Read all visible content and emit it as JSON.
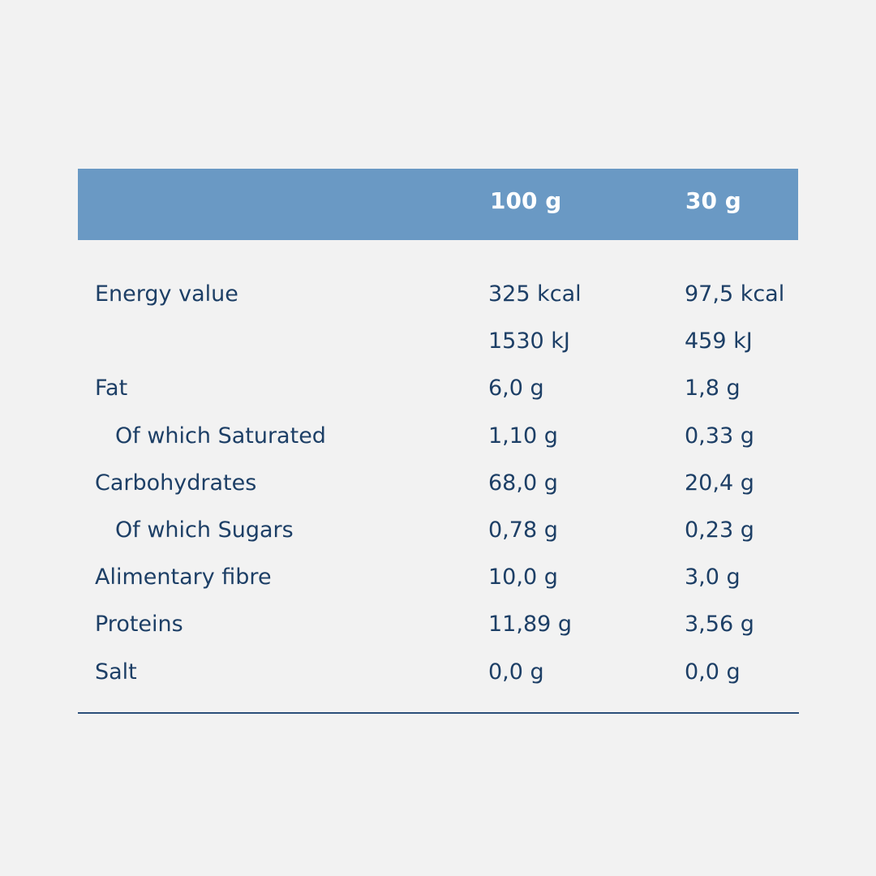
{
  "table": {
    "header": {
      "label": "",
      "col_100g": "100 g",
      "col_30g": "30 g"
    },
    "rows": [
      {
        "label": "Energy value",
        "per_100g": "325 kcal",
        "per_30g": "97,5 kcal",
        "indent": false
      },
      {
        "label": "",
        "per_100g": "1530 kJ",
        "per_30g": "459 kJ",
        "indent": false
      },
      {
        "label": "Fat",
        "per_100g": "6,0 g",
        "per_30g": "1,8 g",
        "indent": false
      },
      {
        "label": "Of which Saturated",
        "per_100g": "1,10 g",
        "per_30g": "0,33 g",
        "indent": true
      },
      {
        "label": "Carbohydrates",
        "per_100g": "68,0 g",
        "per_30g": "20,4 g",
        "indent": false
      },
      {
        "label": "Of which Sugars",
        "per_100g": "0,78 g",
        "per_30g": "0,23 g",
        "indent": true
      },
      {
        "label": "Alimentary fibre",
        "per_100g": "10,0 g",
        "per_30g": "3,0 g",
        "indent": false
      },
      {
        "label": "Proteins",
        "per_100g": "11,89 g",
        "per_30g": "3,56 g",
        "indent": false
      },
      {
        "label": "Salt",
        "per_100g": "0,0 g",
        "per_30g": "0,0 g",
        "indent": false
      }
    ]
  },
  "colors": {
    "background": "#f2f2f2",
    "header": "#6a99c4",
    "text": "#1d3f66",
    "rule": "#2b4f7a"
  }
}
